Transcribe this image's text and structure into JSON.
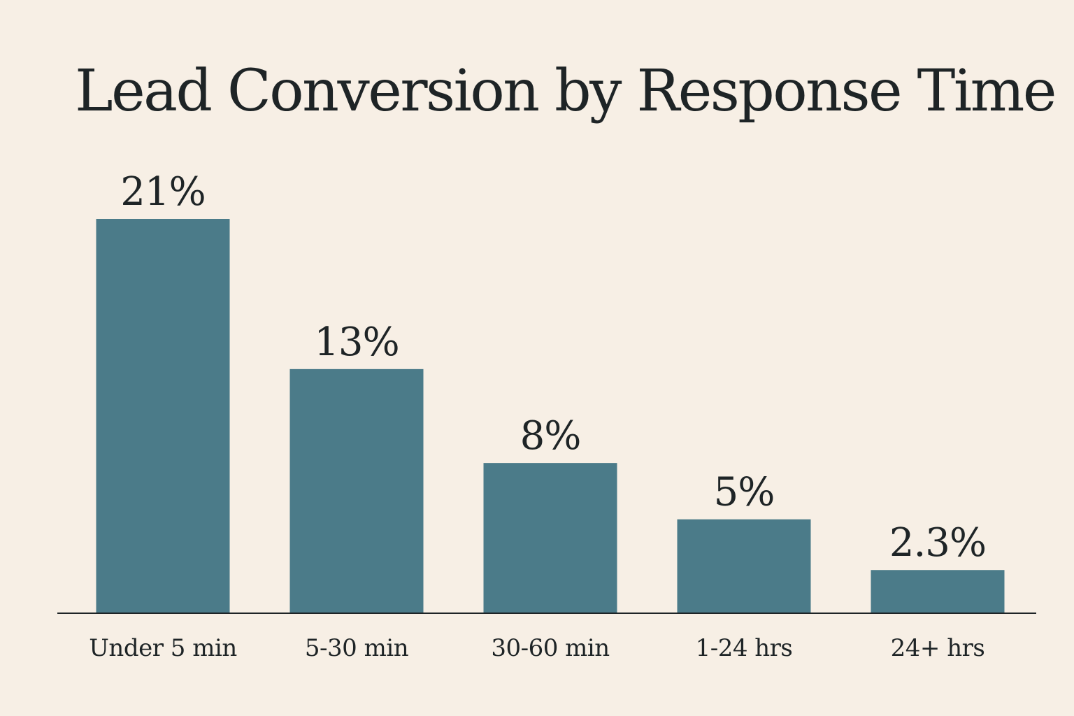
{
  "chart_data": {
    "type": "bar",
    "title": "Lead Conversion by Response Time",
    "xlabel": "",
    "ylabel": "",
    "categories": [
      "Under 5 min",
      "5-30 min",
      "30-60 min",
      "1-24 hrs",
      "24+ hrs"
    ],
    "values": [
      21,
      13,
      8,
      5,
      2.3
    ],
    "value_labels": [
      "21%",
      "13%",
      "8%",
      "5%",
      "2.3%"
    ],
    "ylim": [
      0,
      21
    ],
    "grid": false,
    "legend": "none",
    "bar_color": "#4b7b89",
    "axis_color": "#1e2426",
    "background_color": "#f7efe5"
  }
}
